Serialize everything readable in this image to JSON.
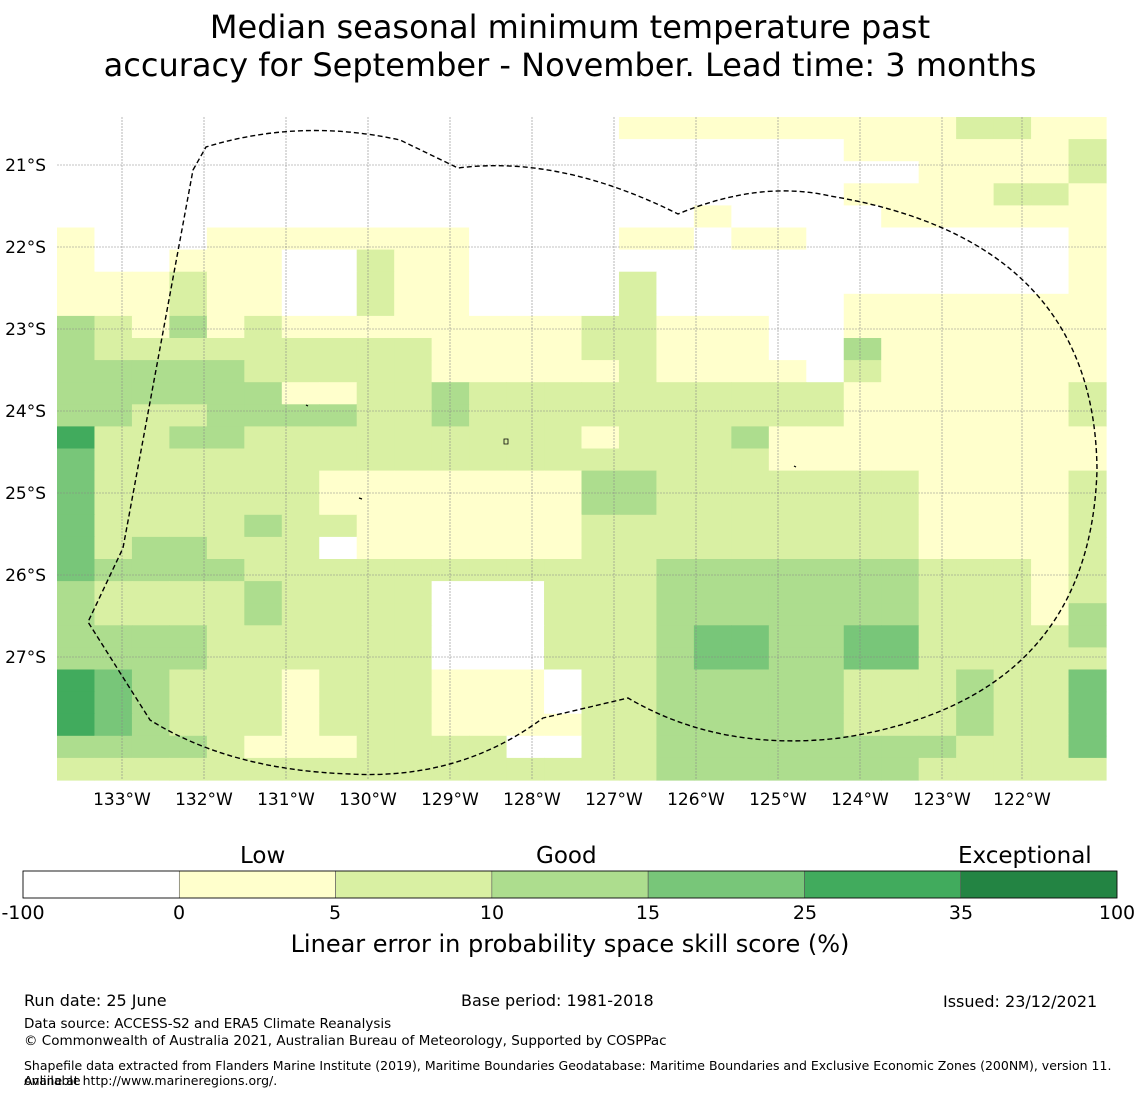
{
  "title_line1": "Median seasonal minimum temperature past",
  "title_line2": "accuracy for September - November. Lead time: 3 months",
  "lon_labels": [
    "133°W",
    "132°W",
    "131°W",
    "130°W",
    "129°W",
    "128°W",
    "127°W",
    "126°W",
    "125°W",
    "124°W",
    "123°W",
    "122°W"
  ],
  "lat_labels": [
    "21°S",
    "22°S",
    "23°S",
    "24°S",
    "25°S",
    "26°S",
    "27°S"
  ],
  "colorbar": {
    "categories": [
      "Low",
      "Good",
      "Exceptional"
    ],
    "ticks": [
      "-100",
      "0",
      "5",
      "10",
      "15",
      "25",
      "35",
      "100"
    ],
    "colors": [
      "#ffffff",
      "#ffffcc",
      "#d9f0a3",
      "#addd8e",
      "#78c679",
      "#41ab5d",
      "#238443"
    ],
    "label": "Linear error in probability space skill score (%)"
  },
  "map_data": {
    "class_colors": [
      "#ffffff",
      "#ffffcc",
      "#d9f0a3",
      "#addd8e",
      "#78c679",
      "#41ab5d",
      "#238443"
    ],
    "grid_rows": [
      "0000000000000001111111112211",
      "0000000000000000000001111112",
      "0000000000000000000000011112",
      "0000000000000000000001111221",
      "0000000000000000010000111111",
      "1000111111100001101100000001",
      "1001110021100000000000000001",
      "1112110021100002000000000001",
      "1112110021100002000001111111",
      "3213121111111122111001111111",
      "3222222222111122111003111111",
      "3333322222111112111102111111",
      "3333331122322222222221111112",
      "3322333322322222222221111112",
      "5223322222222212223111111111",
      "4222222222222222222111111111",
      "4222222111111133222222211112",
      "4222222111111133222222211112",
      "4222232211111122222222211112",
      "4233222011111122222222211112",
      "4333322222222222333333322212",
      "3222232222000222333333322212",
      "3222232222000222333333322213",
      "3333222222000222344334422223",
      "3333222222000222344334422222",
      "5432221222111022333332223224",
      "5432221222111022333332223224",
      "5432221222111122333332223224",
      "3333211122220022333333332224",
      "2222222222222222333333322222"
    ]
  },
  "footer": {
    "run_date": "Run date: 25 June",
    "base_period": "Base period: 1981-2018",
    "issued": "Issued: 23/12/2021",
    "data_source": "Data source: ACCESS-S2 and ERA5 Climate Reanalysis",
    "copyright": "© Commonwealth of Australia 2021, Australian Bureau of Meteorology, Supported by COSPPac",
    "shapefile_line1": "Shapefile data extracted from Flanders Marine Institute (2019), Maritime Boundaries Geodatabase: Maritime Boundaries and Exclusive Economic Zones (200NM), version 11. Available",
    "shapefile_line2": "online at http://www.marineregions.org/."
  }
}
